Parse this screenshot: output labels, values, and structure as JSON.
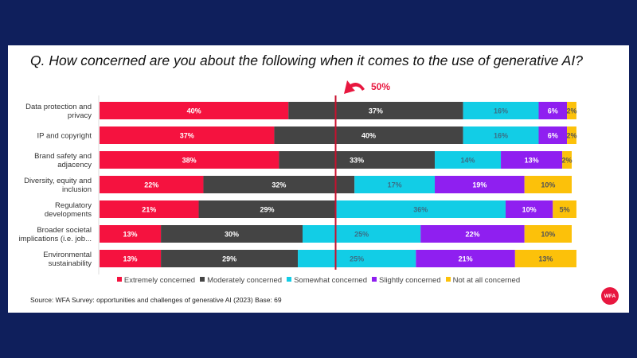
{
  "title": "Q. How concerned are you about the following when it comes to the use of generative AI?",
  "marker_label": "50%",
  "source": "Source: WFA Survey: opportunities and challenges of generative AI (2023) Base: 69",
  "logo_text": "WFA",
  "colors": {
    "background": "#0f1f5c",
    "Extremely concerned": "#f5123f",
    "Moderately concerned": "#444444",
    "Somewhat concerned": "#12cde6",
    "Slightly concerned": "#8f1ff0",
    "Not at all concerned": "#fcc10a",
    "reference_line": "#c8102e"
  },
  "chart_data": {
    "type": "bar",
    "orientation": "horizontal-stacked",
    "categories": [
      "Data protection and privacy",
      "IP and copyright",
      "Brand safety and adjacency",
      "Diversity, equity and inclusion",
      "Regulatory developments",
      "Broader societal implications (i.e. job...",
      "Environmental sustainability"
    ],
    "category_lines": [
      [
        "Data protection and",
        "privacy"
      ],
      [
        "IP and copyright"
      ],
      [
        "Brand safety and",
        "adjacency"
      ],
      [
        "Diversity, equity and",
        "inclusion"
      ],
      [
        "Regulatory",
        "developments"
      ],
      [
        "Broader societal",
        "implications (i.e. job..."
      ],
      [
        "Environmental",
        "sustainability"
      ]
    ],
    "series": [
      {
        "name": "Extremely concerned",
        "values": [
          40,
          37,
          38,
          22,
          21,
          13,
          13
        ]
      },
      {
        "name": "Moderately concerned",
        "values": [
          37,
          40,
          33,
          32,
          29,
          30,
          29
        ]
      },
      {
        "name": "Somewhat concerned",
        "values": [
          16,
          16,
          14,
          17,
          36,
          25,
          25
        ]
      },
      {
        "name": "Slightly concerned",
        "values": [
          6,
          6,
          13,
          19,
          10,
          22,
          21
        ]
      },
      {
        "name": "Not at all concerned",
        "values": [
          2,
          2,
          2,
          10,
          5,
          10,
          13
        ]
      }
    ],
    "reference_line": 50,
    "legend_position": "bottom",
    "grid": false
  }
}
